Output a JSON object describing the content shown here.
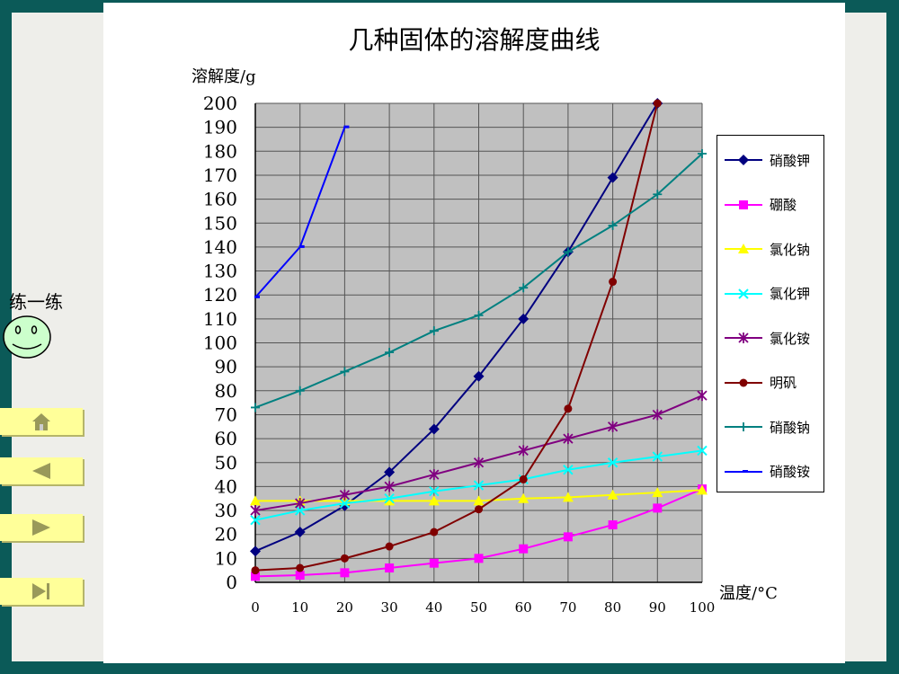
{
  "side": {
    "practice_label": "练一练",
    "buttons": [
      {
        "name": "home",
        "icon": "home-icon"
      },
      {
        "name": "previous",
        "icon": "triangle-left-icon"
      },
      {
        "name": "next",
        "icon": "triangle-right-icon"
      },
      {
        "name": "last",
        "icon": "skip-end-icon"
      }
    ]
  },
  "chart_data": {
    "type": "line",
    "title": "几种固体的溶解度曲线",
    "ylabel": "溶解度/g",
    "xlabel": "温度/°C",
    "x": [
      0,
      10,
      20,
      30,
      40,
      50,
      60,
      70,
      80,
      90,
      100
    ],
    "xlim": [
      0,
      100
    ],
    "ylim": [
      0,
      200
    ],
    "yticks": [
      0,
      10,
      20,
      30,
      40,
      50,
      60,
      70,
      80,
      90,
      100,
      110,
      120,
      130,
      140,
      150,
      160,
      170,
      180,
      190,
      200
    ],
    "grid": true,
    "plot_background": "#c0c0c0",
    "legend_position": "right",
    "series": [
      {
        "name": "硝酸钾",
        "color": "#000080",
        "marker": "diamond",
        "values": [
          13,
          21,
          32,
          46,
          64,
          86,
          110,
          138,
          169,
          200,
          null
        ]
      },
      {
        "name": "硼酸",
        "color": "#ff00ff",
        "marker": "square",
        "values": [
          2.5,
          3,
          4,
          6,
          8,
          10,
          14,
          19,
          24,
          31,
          39
        ]
      },
      {
        "name": "氯化钠",
        "color": "#ffff00",
        "marker": "triangle",
        "values": [
          34,
          34,
          34,
          34,
          34,
          34,
          35,
          35.5,
          36.5,
          37.5,
          38.5
        ]
      },
      {
        "name": "氯化钾",
        "color": "#00ffff",
        "marker": "x",
        "values": [
          26,
          30,
          33,
          35,
          38,
          40.5,
          43,
          47,
          50,
          52.5,
          55
        ]
      },
      {
        "name": "氯化铵",
        "color": "#800080",
        "marker": "star",
        "values": [
          30,
          33,
          36.5,
          40,
          45,
          50,
          55,
          60,
          65,
          70,
          78
        ]
      },
      {
        "name": "明矾",
        "color": "#800000",
        "marker": "circle",
        "values": [
          5,
          6,
          10,
          15,
          21,
          30.5,
          43,
          72.5,
          125.5,
          200,
          null
        ]
      },
      {
        "name": "硝酸钠",
        "color": "#008080",
        "marker": "plus",
        "values": [
          73,
          80,
          88,
          96,
          105,
          111.5,
          123,
          138,
          149,
          162,
          179
        ]
      },
      {
        "name": "硝酸铵",
        "color": "#0000ff",
        "marker": "dash",
        "values": [
          119,
          140,
          190,
          null,
          null,
          null,
          null,
          null,
          null,
          null,
          null
        ]
      }
    ]
  }
}
